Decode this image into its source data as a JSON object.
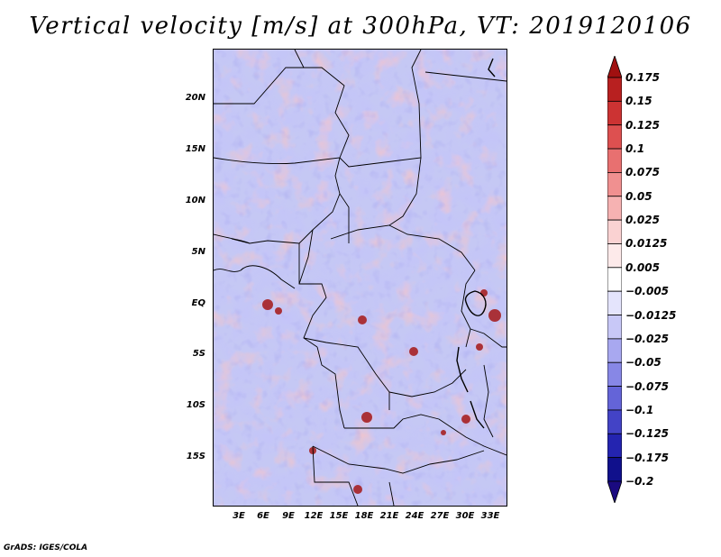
{
  "title": "Vertical velocity [m/s] at 300hPa, VT: 2019120106",
  "credit": "GrADS: IGES/COLA",
  "map": {
    "lat_ticks": [
      "20N",
      "15N",
      "10N",
      "5N",
      "EQ",
      "5S",
      "10S",
      "15S"
    ],
    "lon_ticks": [
      "3E",
      "6E",
      "9E",
      "12E",
      "15E",
      "18E",
      "21E",
      "24E",
      "27E",
      "30E",
      "33E"
    ]
  },
  "colorbar": {
    "levels": [
      "0.175",
      "0.15",
      "0.125",
      "0.1",
      "0.075",
      "0.05",
      "0.025",
      "0.0125",
      "0.005",
      "−0.005",
      "−0.0125",
      "−0.025",
      "−0.05",
      "−0.075",
      "−0.1",
      "−0.125",
      "−0.175",
      "−0.2"
    ],
    "colors": [
      "#a01010",
      "#b82020",
      "#cc3333",
      "#dd5050",
      "#e87070",
      "#f09090",
      "#f6b2b2",
      "#fad2d2",
      "#fdeaea",
      "#ffffff",
      "#e4e4fc",
      "#c8c8f7",
      "#a8a8f0",
      "#8787e6",
      "#6464d8",
      "#4343c6",
      "#2424b0",
      "#10108c",
      "#1a0a80"
    ]
  }
}
